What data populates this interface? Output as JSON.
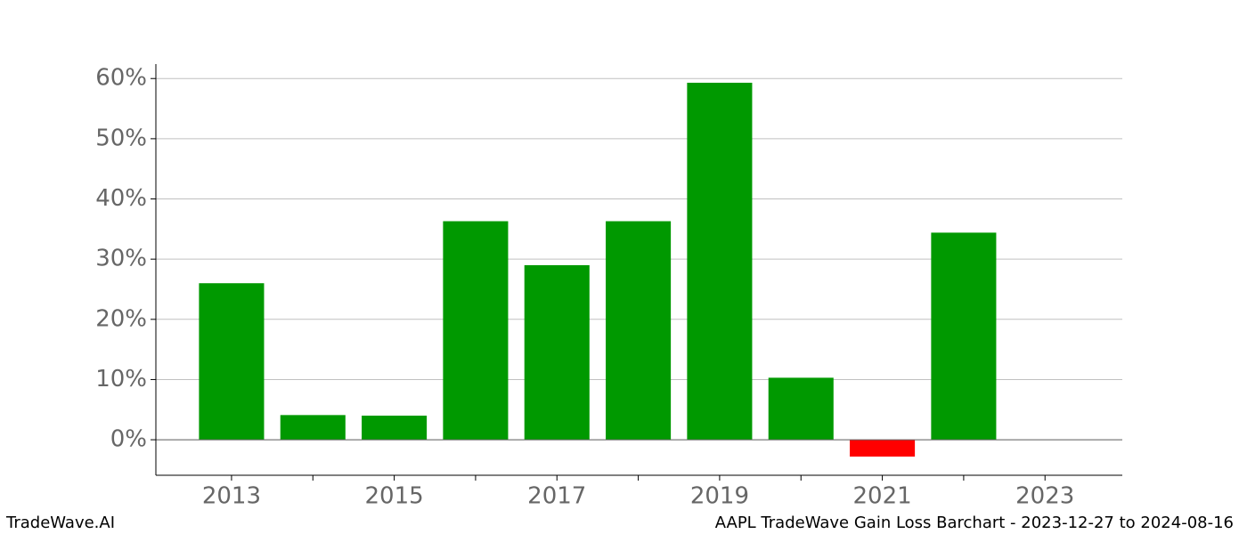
{
  "chart_data": {
    "type": "bar",
    "title": "AAPL TradeWave Gain Loss Barchart - 2023-12-27 to 2024-08-16",
    "watermark": "TradeWave.AI",
    "x": [
      2013,
      2014,
      2015,
      2016,
      2017,
      2018,
      2019,
      2020,
      2021,
      2022
    ],
    "values": [
      26.0,
      4.1,
      4.0,
      36.3,
      29.0,
      36.3,
      59.3,
      10.3,
      -2.8,
      34.4
    ],
    "color": "#009900",
    "negative_color": "#ff0000",
    "xlim": [
      2012.07,
      2023.95
    ],
    "xticks": [
      2013,
      2015,
      2017,
      2019,
      2021,
      2023
    ],
    "minor_xticks": [
      2014,
      2016,
      2018,
      2020,
      2022
    ],
    "ylim": [
      -5.9,
      62.4
    ],
    "yticks": [
      {
        "value": 0,
        "label": "0%"
      },
      {
        "value": 10,
        "label": "10%"
      },
      {
        "value": 20,
        "label": "20%"
      },
      {
        "value": 30,
        "label": "30%"
      },
      {
        "value": 40,
        "label": "40%"
      },
      {
        "value": 50,
        "label": "50%"
      },
      {
        "value": 60,
        "label": "60%"
      }
    ],
    "grid": true
  }
}
